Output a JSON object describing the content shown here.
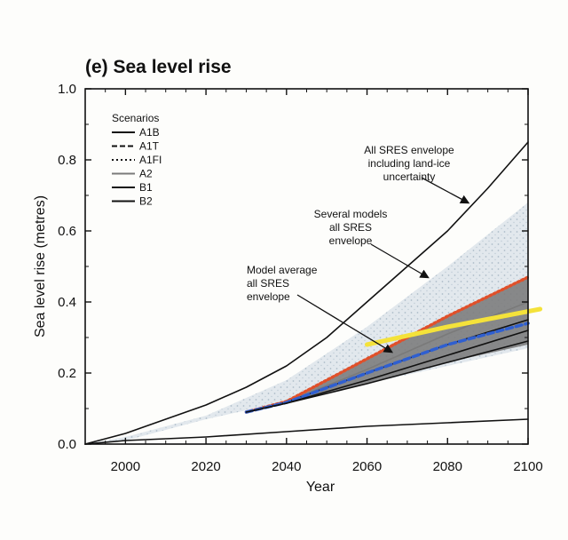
{
  "chart_data": {
    "type": "line",
    "title": "(e) Sea level rise",
    "xlabel": "Year",
    "ylabel": "Sea level rise (metres)",
    "xlim": [
      1990,
      2100
    ],
    "ylim": [
      0.0,
      1.0
    ],
    "xticks": [
      "2000",
      "2020",
      "2040",
      "2060",
      "2080",
      "2100"
    ],
    "yticks": [
      "0.0",
      "0.2",
      "0.4",
      "0.6",
      "0.8",
      "1.0"
    ],
    "grid": false,
    "legend": {
      "title": "Scenarios",
      "position": "top-left",
      "entries": [
        {
          "label": "A1B",
          "style": "solid",
          "color": "#111111"
        },
        {
          "label": "A1T",
          "style": "dashed",
          "color": "#111111"
        },
        {
          "label": "A1FI",
          "style": "dotted",
          "color": "#111111"
        },
        {
          "label": "A2",
          "style": "solid",
          "color": "#7a7a7a"
        },
        {
          "label": "B1",
          "style": "solid",
          "color": "#111111"
        },
        {
          "label": "B2",
          "style": "solid",
          "color": "#111111"
        }
      ]
    },
    "envelopes": [
      {
        "key": "several-models",
        "color": "#c9d3dc",
        "x": [
          1990,
          2000,
          2020,
          2040,
          2060,
          2080,
          2100
        ],
        "upper": [
          0.0,
          0.02,
          0.08,
          0.18,
          0.33,
          0.5,
          0.68
        ],
        "lower": [
          0.0,
          0.01,
          0.07,
          0.12,
          0.17,
          0.22,
          0.27
        ]
      },
      {
        "key": "model-average",
        "color": "#7d7d7d",
        "x": [
          2030,
          2040,
          2060,
          2080,
          2100
        ],
        "upper": [
          0.09,
          0.12,
          0.24,
          0.36,
          0.47
        ],
        "lower": [
          0.09,
          0.115,
          0.17,
          0.23,
          0.28
        ]
      }
    ],
    "series": [
      {
        "name": "All SRES envelope including land-ice uncertainty (upper)",
        "color": "#111111",
        "x": [
          1990,
          2000,
          2010,
          2020,
          2030,
          2040,
          2050,
          2060,
          2070,
          2080,
          2090,
          2100
        ],
        "y": [
          0.0,
          0.03,
          0.07,
          0.11,
          0.16,
          0.22,
          0.3,
          0.4,
          0.5,
          0.6,
          0.72,
          0.85
        ]
      },
      {
        "name": "All SRES envelope including land-ice uncertainty (lower)",
        "color": "#111111",
        "x": [
          1990,
          2000,
          2020,
          2040,
          2060,
          2080,
          2100
        ],
        "y": [
          0.0,
          0.01,
          0.02,
          0.035,
          0.05,
          0.06,
          0.07
        ]
      },
      {
        "name": "A1FI",
        "color": "#e0502a",
        "style": "dotted",
        "x": [
          2030,
          2040,
          2060,
          2080,
          2100
        ],
        "y": [
          0.09,
          0.12,
          0.24,
          0.36,
          0.47
        ]
      },
      {
        "name": "A2",
        "color": "#7a7a7a",
        "x": [
          2030,
          2040,
          2060,
          2080,
          2100
        ],
        "y": [
          0.09,
          0.118,
          0.21,
          0.31,
          0.4
        ]
      },
      {
        "name": "A1B",
        "color": "#111111",
        "x": [
          2030,
          2040,
          2060,
          2080,
          2100
        ],
        "y": [
          0.09,
          0.118,
          0.2,
          0.28,
          0.35
        ]
      },
      {
        "name": "A1T",
        "color": "#2f5fd0",
        "style": "dashed",
        "x": [
          2030,
          2040,
          2060,
          2080,
          2100
        ],
        "y": [
          0.09,
          0.117,
          0.2,
          0.28,
          0.34
        ]
      },
      {
        "name": "B2",
        "color": "#111111",
        "x": [
          2030,
          2040,
          2060,
          2080,
          2100
        ],
        "y": [
          0.09,
          0.115,
          0.18,
          0.25,
          0.32
        ]
      },
      {
        "name": "B1",
        "color": "#111111",
        "x": [
          2030,
          2040,
          2060,
          2080,
          2100
        ],
        "y": [
          0.09,
          0.115,
          0.17,
          0.23,
          0.29
        ]
      },
      {
        "name": "Highlight",
        "color": "#f4e23a",
        "x": [
          2060,
          2080,
          2103
        ],
        "y": [
          0.28,
          0.33,
          0.38
        ]
      }
    ],
    "annotations": [
      {
        "key": "all-sres",
        "lines": [
          "All SRES envelope",
          "including land-ice",
          "uncertainty"
        ],
        "arrow_to": [
          2085,
          0.68
        ]
      },
      {
        "key": "several-models",
        "lines": [
          "Several models",
          "all SRES",
          "envelope"
        ],
        "arrow_to": [
          2075,
          0.47
        ]
      },
      {
        "key": "model-average",
        "lines": [
          "Model average",
          "all SRES",
          "envelope"
        ],
        "arrow_to": [
          2066,
          0.26
        ]
      }
    ]
  }
}
